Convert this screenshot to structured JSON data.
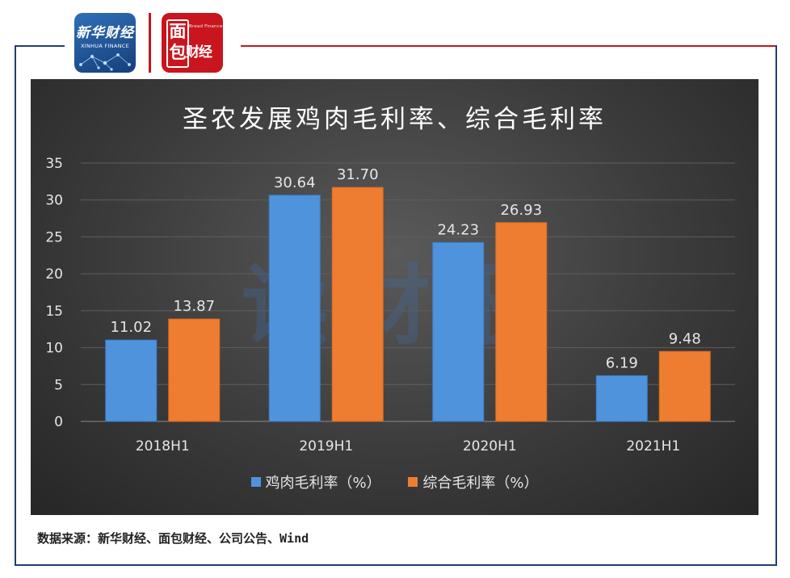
{
  "logos": {
    "xinhua_cn": "新华财经",
    "xinhua_en": "XINHUA FINANCE",
    "mianbao_mark": "面包",
    "mianbao_small": "Bread Finance",
    "mianbao_brand": "财经"
  },
  "watermark": "读财报",
  "colors": {
    "frame": "#1f3f73",
    "accent_red": "#c4161c",
    "series_blue": "#4f93dc",
    "series_orange": "#ee7d31"
  },
  "chart_data": {
    "type": "bar",
    "title": "圣农发展鸡肉毛利率、综合毛利率",
    "categories": [
      "2018H1",
      "2019H1",
      "2020H1",
      "2021H1"
    ],
    "series": [
      {
        "name": "鸡肉毛利率（%）",
        "values": [
          11.02,
          30.64,
          24.23,
          6.19
        ],
        "labels": [
          "11.02",
          "30.64",
          "24.23",
          "6.19"
        ]
      },
      {
        "name": "综合毛利率（%）",
        "values": [
          13.87,
          31.7,
          26.93,
          9.48
        ],
        "labels": [
          "13.87",
          "31.70",
          "26.93",
          "9.48"
        ]
      }
    ],
    "ylim": [
      0,
      35
    ],
    "yticks": [
      "0",
      "5",
      "10",
      "15",
      "20",
      "25",
      "30",
      "35"
    ],
    "ytick_values": [
      0,
      5,
      10,
      15,
      20,
      25,
      30,
      35
    ],
    "grid": true,
    "legend_position": "bottom"
  },
  "source_text": "数据来源：新华财经、面包财经、公司公告、Wind"
}
